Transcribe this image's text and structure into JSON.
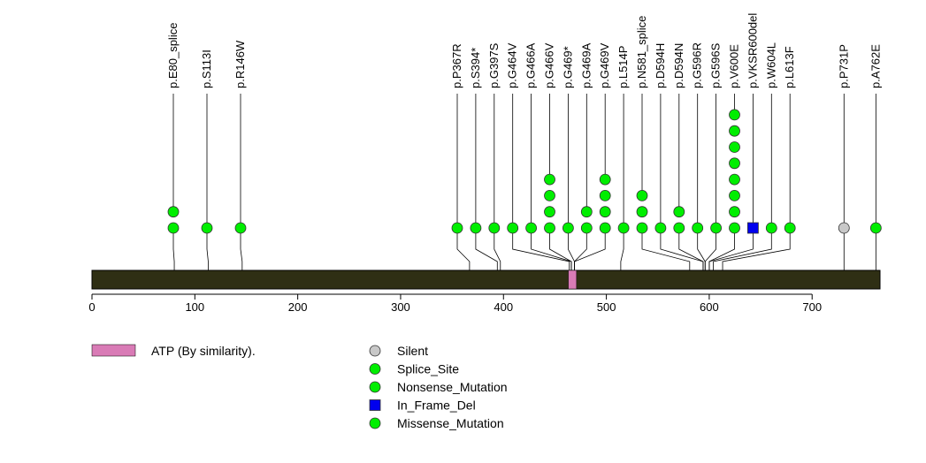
{
  "chart_data": {
    "type": "lollipop",
    "protein_length": 766,
    "axis": {
      "min": 0,
      "max": 766,
      "ticks": [
        0,
        100,
        200,
        300,
        400,
        500,
        600,
        700
      ]
    },
    "domains": [
      {
        "name": "ATP (By similarity).",
        "start": 463,
        "end": 471,
        "color": "#d97bb6"
      }
    ],
    "mutations": [
      {
        "label": "p.E80_splice",
        "pos": 80,
        "count": 2,
        "type": "Splice_Site"
      },
      {
        "label": "p.S113I",
        "pos": 113,
        "count": 1,
        "type": "Missense_Mutation"
      },
      {
        "label": "p.R146W",
        "pos": 146,
        "count": 1,
        "type": "Missense_Mutation"
      },
      {
        "label": "p.P367R",
        "pos": 367,
        "count": 1,
        "type": "Missense_Mutation"
      },
      {
        "label": "p.S394*",
        "pos": 394,
        "count": 1,
        "type": "Nonsense_Mutation"
      },
      {
        "label": "p.G397S",
        "pos": 397,
        "count": 1,
        "type": "Missense_Mutation"
      },
      {
        "label": "p.G464V",
        "pos": 464,
        "count": 1,
        "type": "Missense_Mutation"
      },
      {
        "label": "p.G466A",
        "pos": 466,
        "count": 1,
        "type": "Missense_Mutation"
      },
      {
        "label": "p.G466V",
        "pos": 466,
        "count": 4,
        "type": "Missense_Mutation"
      },
      {
        "label": "p.G469*",
        "pos": 469,
        "count": 1,
        "type": "Nonsense_Mutation"
      },
      {
        "label": "p.G469A",
        "pos": 469,
        "count": 2,
        "type": "Missense_Mutation"
      },
      {
        "label": "p.G469V",
        "pos": 469,
        "count": 4,
        "type": "Missense_Mutation"
      },
      {
        "label": "p.L514P",
        "pos": 514,
        "count": 1,
        "type": "Missense_Mutation"
      },
      {
        "label": "p.N581_splice",
        "pos": 581,
        "count": 3,
        "type": "Splice_Site"
      },
      {
        "label": "p.D594H",
        "pos": 594,
        "count": 1,
        "type": "Missense_Mutation"
      },
      {
        "label": "p.D594N",
        "pos": 594,
        "count": 2,
        "type": "Missense_Mutation"
      },
      {
        "label": "p.G596R",
        "pos": 596,
        "count": 1,
        "type": "Missense_Mutation"
      },
      {
        "label": "p.G596S",
        "pos": 596,
        "count": 1,
        "type": "Missense_Mutation"
      },
      {
        "label": "p.V600E",
        "pos": 600,
        "count": 8,
        "type": "Missense_Mutation"
      },
      {
        "label": "p.VKSR600del",
        "pos": 600,
        "count": 1,
        "type": "In_Frame_Del"
      },
      {
        "label": "p.W604L",
        "pos": 604,
        "count": 1,
        "type": "Missense_Mutation"
      },
      {
        "label": "p.L613F",
        "pos": 613,
        "count": 1,
        "type": "Missense_Mutation"
      },
      {
        "label": "p.P731P",
        "pos": 731,
        "count": 1,
        "type": "Silent"
      },
      {
        "label": "p.A762E",
        "pos": 762,
        "count": 1,
        "type": "Missense_Mutation"
      }
    ],
    "legend": [
      {
        "type": "Silent",
        "label": "Silent",
        "color": "#c8c8c8",
        "shape": "circle"
      },
      {
        "type": "Splice_Site",
        "label": "Splice_Site",
        "color": "#00ee00",
        "shape": "circle"
      },
      {
        "type": "Nonsense_Mutation",
        "label": "Nonsense_Mutation",
        "color": "#00ee00",
        "shape": "circle"
      },
      {
        "type": "In_Frame_Del",
        "label": "In_Frame_Del",
        "color": "#0000ee",
        "shape": "square"
      },
      {
        "type": "Missense_Mutation",
        "label": "Missense_Mutation",
        "color": "#00ee00",
        "shape": "circle"
      }
    ],
    "colors": {
      "backbone": "#2f2f14",
      "stroke": "#000000"
    }
  }
}
